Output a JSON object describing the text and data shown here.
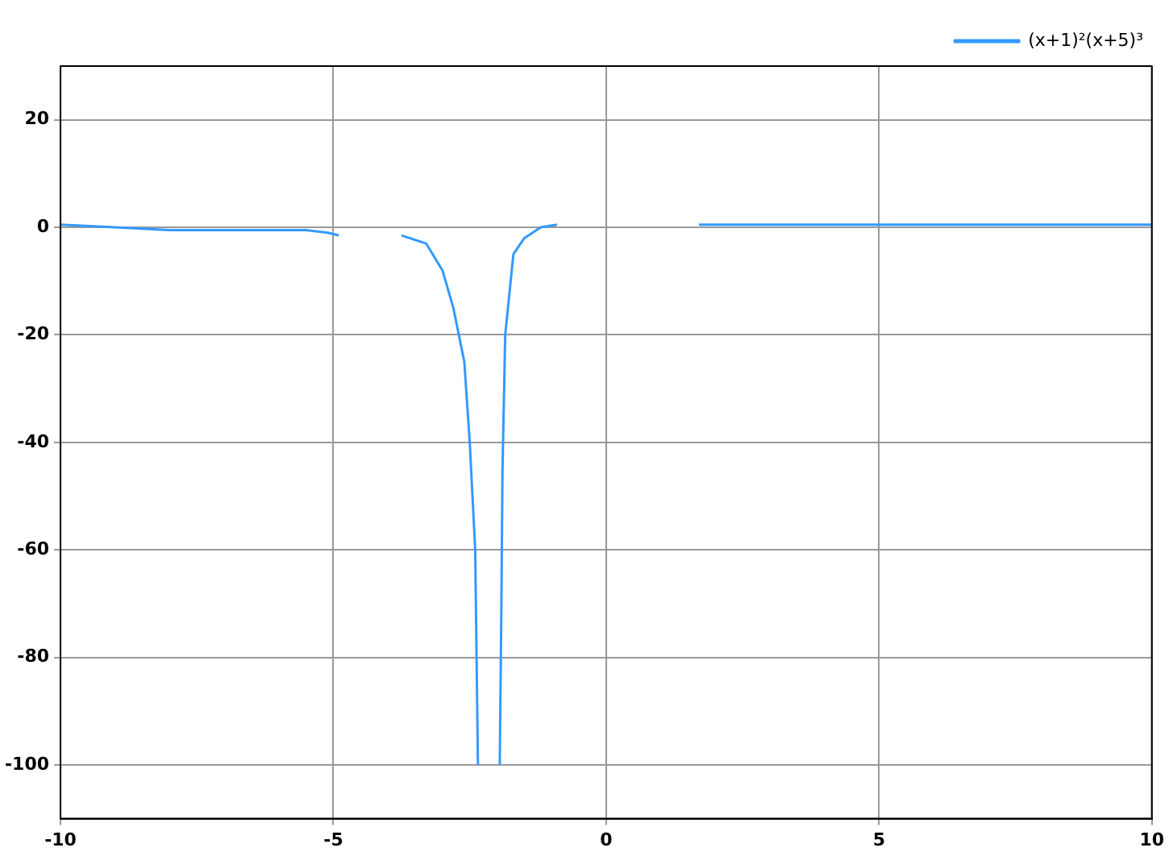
{
  "chart_data": {
    "type": "line",
    "legend": "top right",
    "grid": true,
    "marker": "none",
    "line_style": "solid",
    "xlim": [
      -10,
      10
    ],
    "xticks": [
      -10,
      -5,
      0,
      5,
      10
    ],
    "ylim": [
      -110,
      30
    ],
    "yticks": [
      20,
      0,
      -20,
      -40,
      -60,
      -80,
      -100
    ],
    "series": [
      {
        "name": "(x+1)²(x+5)³",
        "color": "#3399ff",
        "x": [
          -10,
          -9,
          -8,
          -5.5,
          -5.1,
          -4.9,
          -4.3,
          -3.75,
          -3.3,
          -3,
          -2.8,
          -2.6,
          -2.5,
          -2.4,
          -2.35,
          -2.15,
          -1.95,
          -1.92,
          -1.9,
          -1.85,
          -1.8,
          -1.7,
          -1.5,
          -1.2,
          -0.9,
          0.5,
          1.7,
          10
        ],
        "values": [
          0.5,
          0,
          -0.5,
          -0.5,
          -1,
          -1.5,
          null,
          -1.5,
          -3,
          -8,
          -15,
          -25,
          -40,
          -60,
          -100,
          null,
          -100,
          -70,
          -45,
          -20,
          -15,
          -5,
          -2,
          0,
          0.5,
          null,
          0.5,
          0.5
        ]
      }
    ]
  }
}
